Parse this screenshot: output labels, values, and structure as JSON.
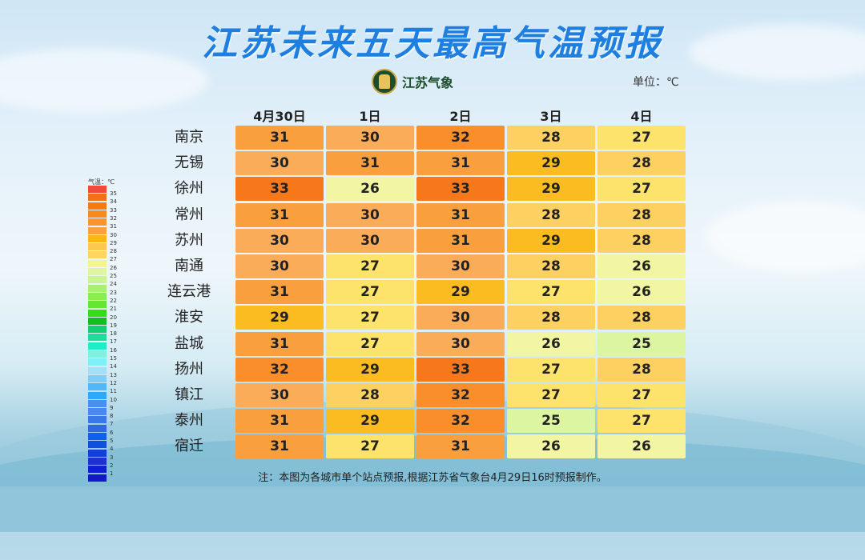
{
  "title": "江苏未来五天最高气温预报",
  "logo_text": "江苏气象",
  "unit": "单位：℃",
  "dates": [
    "4月30日",
    "1日",
    "2日",
    "3日",
    "4日"
  ],
  "cities": [
    {
      "name": "南京",
      "temps": [
        31,
        30,
        32,
        28,
        27
      ]
    },
    {
      "name": "无锡",
      "temps": [
        30,
        31,
        31,
        29,
        28
      ]
    },
    {
      "name": "徐州",
      "temps": [
        33,
        26,
        33,
        29,
        27
      ]
    },
    {
      "name": "常州",
      "temps": [
        31,
        30,
        31,
        28,
        28
      ]
    },
    {
      "name": "苏州",
      "temps": [
        30,
        30,
        31,
        29,
        28
      ]
    },
    {
      "name": "南通",
      "temps": [
        30,
        27,
        30,
        28,
        26
      ]
    },
    {
      "name": "连云港",
      "temps": [
        31,
        27,
        29,
        27,
        26
      ]
    },
    {
      "name": "淮安",
      "temps": [
        29,
        27,
        30,
        28,
        28
      ]
    },
    {
      "name": "盐城",
      "temps": [
        31,
        27,
        30,
        26,
        25
      ]
    },
    {
      "name": "扬州",
      "temps": [
        32,
        29,
        33,
        27,
        28
      ]
    },
    {
      "name": "镇江",
      "temps": [
        30,
        28,
        32,
        27,
        27
      ]
    },
    {
      "name": "泰州",
      "temps": [
        31,
        29,
        32,
        25,
        27
      ]
    },
    {
      "name": "宿迁",
      "temps": [
        31,
        27,
        31,
        26,
        26
      ]
    }
  ],
  "legend": {
    "title": "气温：℃",
    "labels": [
      "35",
      "34",
      "33",
      "32",
      "31",
      "30",
      "29",
      "28",
      "27",
      "26",
      "25",
      "24",
      "23",
      "22",
      "21",
      "20",
      "19",
      "18",
      "17",
      "16",
      "15",
      "14",
      "13",
      "12",
      "11",
      "10",
      "9",
      "8",
      "7",
      "6",
      "5",
      "4",
      "3",
      "2",
      "1"
    ],
    "colors": [
      "#f04a3a",
      "#f27018",
      "#f57a10",
      "#f78a1c",
      "#f9952a",
      "#fba040",
      "#fbb515",
      "#fcc850",
      "#fdd560",
      "#f5f590",
      "#e0f5a0",
      "#c8f590",
      "#a8f070",
      "#88ee50",
      "#66e630",
      "#30e010",
      "#10c020",
      "#10d070",
      "#20dc9a",
      "#20ecc8",
      "#80f0e0",
      "#80f0f8",
      "#a0e0f8",
      "#80ccf8",
      "#50b8f8",
      "#30a8f8",
      "#4890f0",
      "#4888f0",
      "#3878e8",
      "#3068e0",
      "#1060f0",
      "#1050e0",
      "#1040d8",
      "#2030d0",
      "#1020d0",
      "#1018c8"
    ]
  },
  "temp_colors": {
    "25": "#dcf5a0",
    "26": "#f2f6a2",
    "27": "#fde26c",
    "28": "#fdd062",
    "29": "#fbbc22",
    "30": "#fbac58",
    "31": "#f99f3e",
    "32": "#f98e2a",
    "33": "#f7781a"
  },
  "note": "注：本图为各城市单个站点预报,根据江苏省气象台4月29日16时预报制作。"
}
